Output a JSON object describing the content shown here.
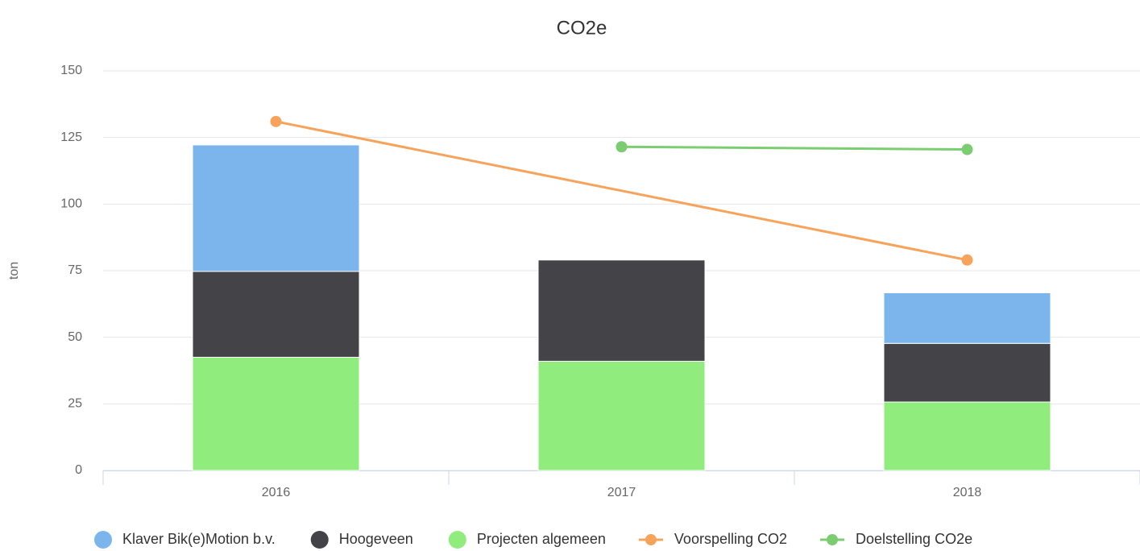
{
  "chart_data": {
    "type": "bar",
    "stacked": true,
    "title": "CO2e",
    "ylabel": "ton",
    "categories": [
      "2016",
      "2017",
      "2018"
    ],
    "series": [
      {
        "name": "Projecten algemeen",
        "type": "column",
        "color": "#90ed7d",
        "values": [
          42.5,
          41,
          25.7
        ]
      },
      {
        "name": "Hoogeveen",
        "type": "column",
        "color": "#434348",
        "values": [
          32.2,
          38,
          22
        ]
      },
      {
        "name": "Klaver Bik(e)Motion b.v.",
        "type": "column",
        "color": "#7cb5ec",
        "values": [
          47.5,
          null,
          19
        ]
      },
      {
        "name": "Voorspelling CO2",
        "type": "line",
        "color": "#f7a35c",
        "values": [
          131,
          null,
          79
        ]
      },
      {
        "name": "Doelstelling CO2e",
        "type": "line",
        "color": "#7ccc72",
        "values": [
          null,
          121.5,
          120.5
        ]
      }
    ],
    "legend_order": [
      2,
      1,
      0,
      3,
      4
    ],
    "connect_nulls": true,
    "ylim": [
      0,
      150
    ],
    "yticks": [
      0,
      25,
      50,
      75,
      100,
      125,
      150
    ],
    "grid": true
  }
}
